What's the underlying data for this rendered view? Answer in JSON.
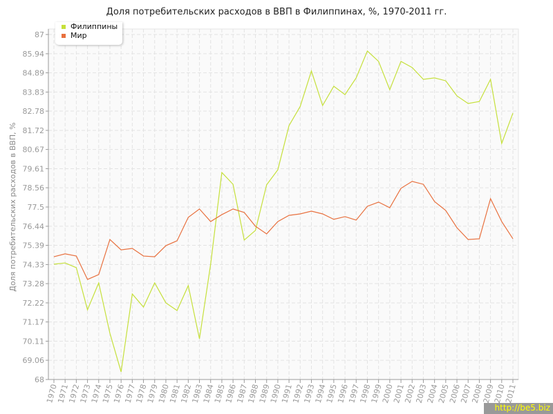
{
  "chart_data": {
    "type": "line",
    "title": "Доля потребительских расходов в ВВП в Филиппинах, %, 1970-2011 гг.",
    "xlabel": "",
    "ylabel": "Доля потребительских расходов в ВВП, %",
    "ylim": [
      68,
      87
    ],
    "yticks": [
      "68",
      "69.06",
      "70.11",
      "71.17",
      "72.22",
      "73.28",
      "74.33",
      "75.39",
      "76.44",
      "77.5",
      "78.56",
      "79.61",
      "80.67",
      "81.72",
      "82.78",
      "83.83",
      "84.89",
      "85.94",
      "87"
    ],
    "grid": true,
    "legend_position": "top-left",
    "x": [
      1970,
      1971,
      1972,
      1973,
      1974,
      1975,
      1976,
      1977,
      1978,
      1979,
      1980,
      1981,
      1982,
      1983,
      1984,
      1985,
      1986,
      1987,
      1988,
      1989,
      1990,
      1991,
      1992,
      1993,
      1994,
      1995,
      1996,
      1997,
      1998,
      1999,
      2000,
      2001,
      2002,
      2003,
      2004,
      2005,
      2006,
      2007,
      2008,
      2009,
      2010,
      2011
    ],
    "series": [
      {
        "name": "Филиппины",
        "color": "#c5e03a",
        "values": [
          74.35,
          74.42,
          74.16,
          71.84,
          73.32,
          70.55,
          68.42,
          72.71,
          71.99,
          73.32,
          72.22,
          71.8,
          73.17,
          70.24,
          74.35,
          79.4,
          78.75,
          75.68,
          76.21,
          78.72,
          79.55,
          81.98,
          83.04,
          84.99,
          83.09,
          84.15,
          83.69,
          84.61,
          86.09,
          85.52,
          83.96,
          85.52,
          85.18,
          84.53,
          84.61,
          84.45,
          83.62,
          83.2,
          83.31,
          84.53,
          81.0,
          82.67
        ]
      },
      {
        "name": "Мир",
        "color": "#e8703e",
        "values": [
          74.76,
          74.92,
          74.8,
          73.51,
          73.78,
          75.71,
          75.14,
          75.22,
          74.8,
          74.76,
          75.37,
          75.64,
          76.93,
          77.39,
          76.7,
          77.08,
          77.39,
          77.2,
          76.44,
          76.02,
          76.7,
          77.04,
          77.12,
          77.27,
          77.12,
          76.82,
          76.97,
          76.78,
          77.54,
          77.77,
          77.46,
          78.53,
          78.91,
          78.75,
          77.8,
          77.31,
          76.36,
          75.71,
          75.75,
          77.96,
          76.7,
          75.75
        ]
      }
    ]
  },
  "watermark": "http://be5.biz"
}
